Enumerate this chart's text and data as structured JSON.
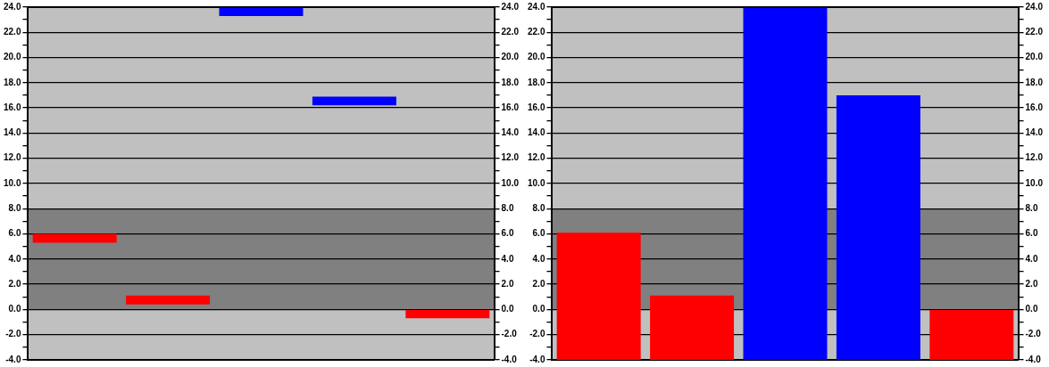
{
  "chart_data": [
    {
      "type": "bar",
      "categories": [
        null,
        null,
        null,
        null,
        null
      ],
      "base": [
        5.3,
        0.4,
        23.3,
        16.2,
        -0.7
      ],
      "values": [
        0.7,
        0.7,
        0.7,
        0.7,
        0.7
      ],
      "colors": [
        "#ff0000",
        "#ff0000",
        "#0000ff",
        "#0000ff",
        "#ff0000"
      ],
      "ylim": [
        -4,
        24
      ],
      "yticks": [
        {
          "value": -4,
          "label": "-4.0"
        },
        {
          "value": -3,
          "label": null
        },
        {
          "value": -2,
          "label": "-2.0"
        },
        {
          "value": -1,
          "label": null
        },
        {
          "value": 0,
          "label": "0.0"
        },
        {
          "value": 1,
          "label": null
        },
        {
          "value": 2,
          "label": "2.0"
        },
        {
          "value": 3,
          "label": null
        },
        {
          "value": 4,
          "label": "4.0"
        },
        {
          "value": 5,
          "label": null
        },
        {
          "value": 6,
          "label": "6.0"
        },
        {
          "value": 7,
          "label": null
        },
        {
          "value": 8,
          "label": "8.0"
        },
        {
          "value": 9,
          "label": null
        },
        {
          "value": 10,
          "label": "10.0"
        },
        {
          "value": 11,
          "label": null
        },
        {
          "value": 12,
          "label": "12.0"
        },
        {
          "value": 13,
          "label": null
        },
        {
          "value": 14,
          "label": "14.0"
        },
        {
          "value": 15,
          "label": null
        },
        {
          "value": 16,
          "label": "16.0"
        },
        {
          "value": 17,
          "label": null
        },
        {
          "value": 18,
          "label": "18.0"
        },
        {
          "value": 19,
          "label": null
        },
        {
          "value": 20,
          "label": "20.0"
        },
        {
          "value": 21,
          "label": null
        },
        {
          "value": 22,
          "label": "22.0"
        },
        {
          "value": 23,
          "label": null
        },
        {
          "value": 24,
          "label": "24.0"
        }
      ],
      "y2lim": [
        -4,
        24
      ],
      "y2ticks": [
        {
          "value": -4,
          "label": "-4.0"
        },
        {
          "value": -3,
          "label": null
        },
        {
          "value": -2,
          "label": "-2.0"
        },
        {
          "value": -1,
          "label": null
        },
        {
          "value": 0,
          "label": "0.0"
        },
        {
          "value": 1,
          "label": null
        },
        {
          "value": 2,
          "label": "2.0"
        },
        {
          "value": 3,
          "label": null
        },
        {
          "value": 4,
          "label": "4.0"
        },
        {
          "value": 5,
          "label": null
        },
        {
          "value": 6,
          "label": "6.0"
        },
        {
          "value": 7,
          "label": null
        },
        {
          "value": 8,
          "label": "8.0"
        },
        {
          "value": 9,
          "label": null
        },
        {
          "value": 10,
          "label": "10.0"
        },
        {
          "value": 11,
          "label": null
        },
        {
          "value": 12,
          "label": "12.0"
        },
        {
          "value": 13,
          "label": null
        },
        {
          "value": 14,
          "label": "14.0"
        },
        {
          "value": 15,
          "label": null
        },
        {
          "value": 16,
          "label": "16.0"
        },
        {
          "value": 17,
          "label": null
        },
        {
          "value": 18,
          "label": "18.0"
        },
        {
          "value": 19,
          "label": null
        },
        {
          "value": 20,
          "label": "20.0"
        },
        {
          "value": 21,
          "label": null
        },
        {
          "value": 22,
          "label": "22.0"
        },
        {
          "value": 23,
          "label": null
        },
        {
          "value": 24,
          "label": "24.0"
        }
      ],
      "bands": [
        {
          "axis": "y",
          "from": 0,
          "to": 8,
          "color": "#808080"
        }
      ],
      "grid": "y"
    },
    {
      "type": "bar",
      "categories": [
        null,
        null,
        null,
        null,
        null
      ],
      "base": [
        -4,
        -4,
        -4,
        -4,
        -4
      ],
      "values": [
        10.1,
        5.1,
        28,
        21,
        4
      ],
      "colors": [
        "#ff0000",
        "#ff0000",
        "#0000ff",
        "#0000ff",
        "#ff0000"
      ],
      "ylim": [
        -4,
        24
      ],
      "yticks": [
        {
          "value": -4,
          "label": "-4.0"
        },
        {
          "value": -3,
          "label": null
        },
        {
          "value": -2,
          "label": "-2.0"
        },
        {
          "value": -1,
          "label": null
        },
        {
          "value": 0,
          "label": "0.0"
        },
        {
          "value": 1,
          "label": null
        },
        {
          "value": 2,
          "label": "2.0"
        },
        {
          "value": 3,
          "label": null
        },
        {
          "value": 4,
          "label": "4.0"
        },
        {
          "value": 5,
          "label": null
        },
        {
          "value": 6,
          "label": "6.0"
        },
        {
          "value": 7,
          "label": null
        },
        {
          "value": 8,
          "label": "8.0"
        },
        {
          "value": 9,
          "label": null
        },
        {
          "value": 10,
          "label": "10.0"
        },
        {
          "value": 11,
          "label": null
        },
        {
          "value": 12,
          "label": "12.0"
        },
        {
          "value": 13,
          "label": null
        },
        {
          "value": 14,
          "label": "14.0"
        },
        {
          "value": 15,
          "label": null
        },
        {
          "value": 16,
          "label": "16.0"
        },
        {
          "value": 17,
          "label": null
        },
        {
          "value": 18,
          "label": "18.0"
        },
        {
          "value": 19,
          "label": null
        },
        {
          "value": 20,
          "label": "20.0"
        },
        {
          "value": 21,
          "label": null
        },
        {
          "value": 22,
          "label": "22.0"
        },
        {
          "value": 23,
          "label": null
        },
        {
          "value": 24,
          "label": "24.0"
        }
      ],
      "y2lim": [
        -4,
        24
      ],
      "y2ticks": [
        {
          "value": -4,
          "label": "-4.0"
        },
        {
          "value": -3,
          "label": null
        },
        {
          "value": -2,
          "label": "-2.0"
        },
        {
          "value": -1,
          "label": null
        },
        {
          "value": 0,
          "label": "0.0"
        },
        {
          "value": 1,
          "label": null
        },
        {
          "value": 2,
          "label": "2.0"
        },
        {
          "value": 3,
          "label": null
        },
        {
          "value": 4,
          "label": "4.0"
        },
        {
          "value": 5,
          "label": null
        },
        {
          "value": 6,
          "label": "6.0"
        },
        {
          "value": 7,
          "label": null
        },
        {
          "value": 8,
          "label": "8.0"
        },
        {
          "value": 9,
          "label": null
        },
        {
          "value": 10,
          "label": "10.0"
        },
        {
          "value": 11,
          "label": null
        },
        {
          "value": 12,
          "label": "12.0"
        },
        {
          "value": 13,
          "label": null
        },
        {
          "value": 14,
          "label": "14.0"
        },
        {
          "value": 15,
          "label": null
        },
        {
          "value": 16,
          "label": "16.0"
        },
        {
          "value": 17,
          "label": null
        },
        {
          "value": 18,
          "label": "18.0"
        },
        {
          "value": 19,
          "label": null
        },
        {
          "value": 20,
          "label": "20.0"
        },
        {
          "value": 21,
          "label": null
        },
        {
          "value": 22,
          "label": "22.0"
        },
        {
          "value": 23,
          "label": null
        },
        {
          "value": 24,
          "label": "24.0"
        }
      ],
      "bands": [
        {
          "axis": "y",
          "from": 0,
          "to": 8,
          "color": "#808080"
        }
      ],
      "grid": "y"
    }
  ]
}
